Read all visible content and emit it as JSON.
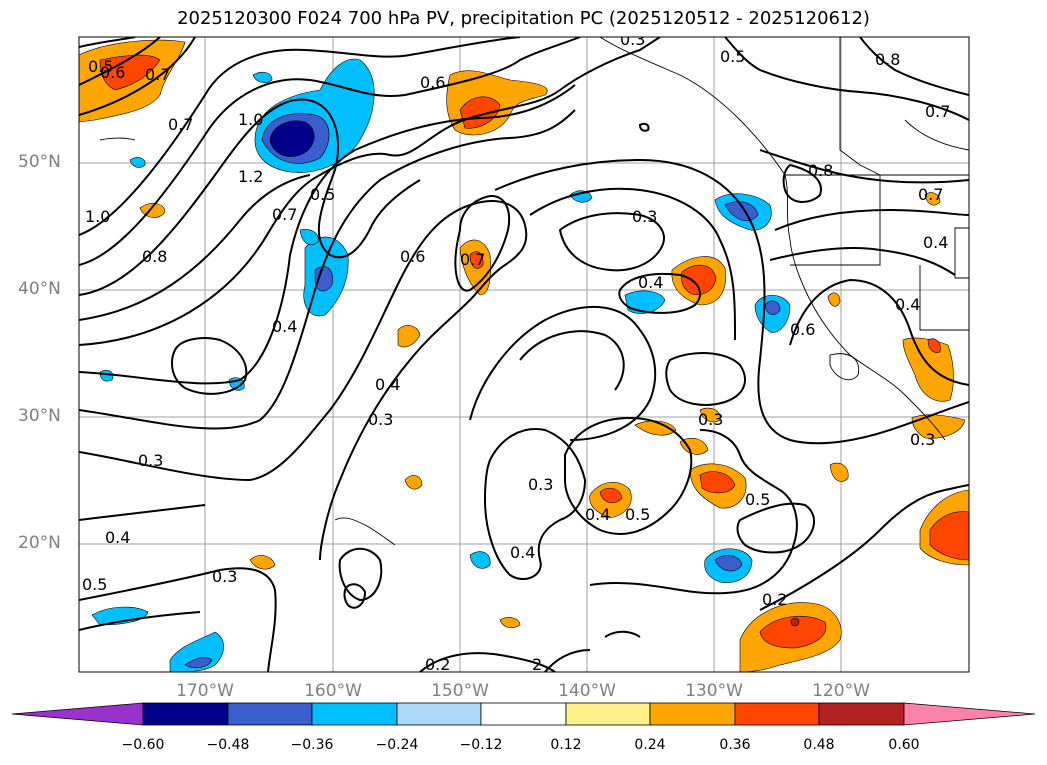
{
  "title": "2025120300 F024 700 hPa PV, precipitation PC (2025120512 - 2025120612)",
  "lat_labels": [
    "50°N",
    "40°N",
    "30°N",
    "20°N"
  ],
  "lon_labels": [
    "170°W",
    "160°W",
    "150°W",
    "140°W",
    "130°W",
    "120°W"
  ],
  "colorbar": {
    "ticks": [
      "−0.60",
      "−0.48",
      "−0.36",
      "−0.24",
      "−0.12",
      "0.12",
      "0.24",
      "0.36",
      "0.48",
      "0.60"
    ],
    "colors": [
      "#9932cc",
      "#00008b",
      "#3a5fcd",
      "#00bfff",
      "#add8f5",
      "#ffffff",
      "#fff08a",
      "#ffa500",
      "#ff4500",
      "#b22222",
      "#ff82ab"
    ]
  },
  "contour_labels": [
    "0.5",
    "0.6",
    "0.7",
    "0.7",
    "1.0",
    "1.2",
    "0.7",
    "0.5",
    "0.6",
    "0.5",
    "0.8",
    "0.7",
    "1.0",
    "0.8",
    "0.4",
    "0.6",
    "0.7",
    "0.3",
    "0.4",
    "0.8",
    "0.7",
    "0.4",
    "0.4",
    "0.6",
    "0.4",
    "0.3",
    "0.3",
    "0.3",
    "0.3",
    "0.4",
    "0.5",
    "0.5",
    "0.3",
    "0.4",
    "0.4",
    "0.5",
    "0.3",
    "0.2",
    "0.2",
    "2",
    "0.3"
  ]
}
